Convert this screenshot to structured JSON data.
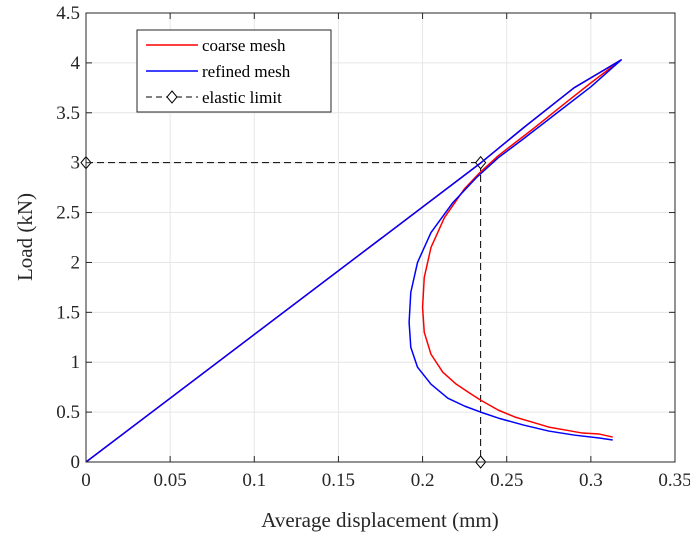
{
  "chart_data": {
    "type": "line",
    "xlabel": "Average displacement (mm)",
    "ylabel": "Load (kN)",
    "xlim": [
      0,
      0.35
    ],
    "ylim": [
      0,
      4.5
    ],
    "xticks": [
      0,
      0.05,
      0.1,
      0.15,
      0.2,
      0.25,
      0.3,
      0.35
    ],
    "yticks": [
      0,
      0.5,
      1,
      1.5,
      2,
      2.5,
      3,
      3.5,
      4,
      4.5
    ],
    "xtick_labels": [
      "0",
      "0.05",
      "0.1",
      "0.15",
      "0.2",
      "0.25",
      "0.3",
      "0.35"
    ],
    "ytick_labels": [
      "0",
      "0.5",
      "1",
      "1.5",
      "2",
      "2.5",
      "3",
      "3.5",
      "4",
      "4.5"
    ],
    "grid": true,
    "legend_position": "top-left",
    "series": [
      {
        "name": "coarse mesh",
        "color": "#ff0000",
        "x": [
          0,
          0.234,
          0.26,
          0.29,
          0.31,
          0.318,
          0.3,
          0.285,
          0.265,
          0.245,
          0.234,
          0.225,
          0.213,
          0.205,
          0.201,
          0.2,
          0.201,
          0.205,
          0.212,
          0.22,
          0.228,
          0.2345,
          0.245,
          0.255,
          0.265,
          0.275,
          0.285,
          0.295,
          0.305,
          0.313
        ],
        "y": [
          0,
          2.99,
          3.35,
          3.75,
          3.95,
          4.03,
          3.8,
          3.6,
          3.33,
          3.07,
          2.9,
          2.74,
          2.45,
          2.15,
          1.85,
          1.55,
          1.3,
          1.08,
          0.9,
          0.78,
          0.69,
          0.62,
          0.52,
          0.45,
          0.4,
          0.35,
          0.32,
          0.29,
          0.28,
          0.25
        ]
      },
      {
        "name": "refined mesh",
        "color": "#0000ff",
        "x": [
          0,
          0.234,
          0.26,
          0.29,
          0.31,
          0.318,
          0.3,
          0.28,
          0.26,
          0.245,
          0.232,
          0.218,
          0.205,
          0.197,
          0.193,
          0.192,
          0.193,
          0.197,
          0.205,
          0.215,
          0.225,
          0.2345,
          0.245,
          0.26,
          0.275,
          0.29,
          0.305,
          0.313
        ],
        "y": [
          0,
          2.99,
          3.35,
          3.75,
          3.95,
          4.03,
          3.76,
          3.5,
          3.24,
          3.05,
          2.85,
          2.6,
          2.3,
          2.0,
          1.7,
          1.4,
          1.15,
          0.95,
          0.78,
          0.64,
          0.56,
          0.5,
          0.44,
          0.37,
          0.31,
          0.27,
          0.24,
          0.22
        ]
      },
      {
        "name": "elastic limit",
        "color": "#000000",
        "dashed": true,
        "marker": "diamond",
        "x": [
          0,
          0.2345,
          0.2345
        ],
        "y": [
          3,
          3,
          0
        ]
      }
    ]
  }
}
